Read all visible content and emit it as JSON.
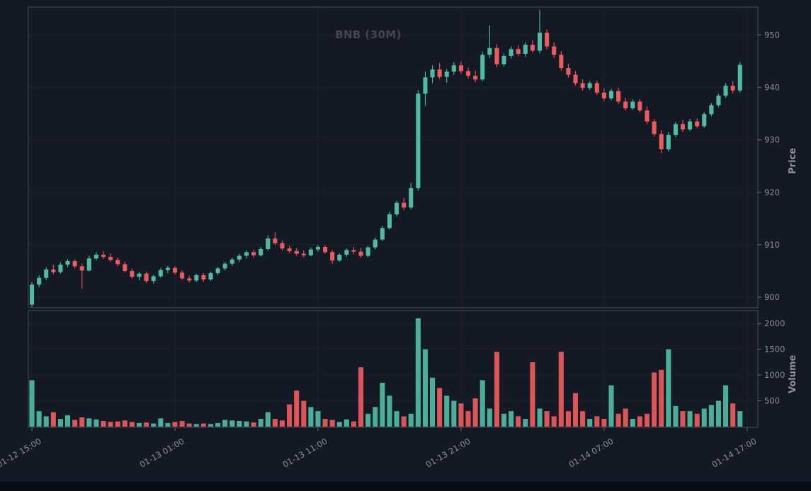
{
  "window": {
    "background_color": "#141a25",
    "bottom_edge_color": "#0a0d14"
  },
  "chart": {
    "title": "BNB (30M)",
    "price_axis_label": "Price",
    "volume_axis_label": "Volume"
  },
  "chart_data": {
    "type": "candlestick",
    "symbol": "BNB",
    "interval": "30M",
    "title": "BNB (30M)",
    "grid": true,
    "legend_position": "none",
    "up_color": "#4ebca4",
    "down_color": "#ef5b5b",
    "grid_color": "#1d2230",
    "spine_color": "#454b57",
    "tick_label_color": "#8b909b",
    "axis": {
      "price_ticks": [
        900,
        910,
        920,
        930,
        940,
        950
      ],
      "price_ylim": [
        898.0,
        955.3
      ],
      "volume_ticks": [
        500,
        1000,
        1500,
        2000
      ],
      "volume_ylim": [
        0,
        2250
      ],
      "x_tick_labels": [
        "01-12 15:00",
        "01-13 01:00",
        "01-13 11:00",
        "01-13 21:00",
        "01-14 07:00",
        "01-14 17:00"
      ],
      "x_tick_indices": [
        0,
        20,
        40,
        60,
        80,
        100
      ]
    },
    "columns": [
      "time",
      "open",
      "high",
      "low",
      "close",
      "volume"
    ],
    "candles": [
      [
        "01-12 15:00",
        898.6,
        902.9,
        898.1,
        902.4,
        900
      ],
      [
        "01-12 15:30",
        902.4,
        904.2,
        901.9,
        903.7,
        300
      ],
      [
        "01-12 16:00",
        903.7,
        905.7,
        903.3,
        905.3,
        200
      ],
      [
        "01-12 16:30",
        905.3,
        906.2,
        904.4,
        904.8,
        280
      ],
      [
        "01-12 17:00",
        904.8,
        906.6,
        904.5,
        906.2,
        150
      ],
      [
        "01-12 17:30",
        906.2,
        907.3,
        905.7,
        906.9,
        220
      ],
      [
        "01-12 18:00",
        906.9,
        907.2,
        905.5,
        905.9,
        130
      ],
      [
        "01-12 18:30",
        905.9,
        906.4,
        901.6,
        905.1,
        180
      ],
      [
        "01-12 19:00",
        905.1,
        907.9,
        904.9,
        907.4,
        160
      ],
      [
        "01-12 19:30",
        907.4,
        908.6,
        907.0,
        908.1,
        140
      ],
      [
        "01-12 20:00",
        908.1,
        908.8,
        907.3,
        907.7,
        110
      ],
      [
        "01-12 20:30",
        907.7,
        908.3,
        906.8,
        907.1,
        90
      ],
      [
        "01-12 21:00",
        907.1,
        907.6,
        905.9,
        906.3,
        100
      ],
      [
        "01-12 21:30",
        906.3,
        906.8,
        904.7,
        905.0,
        120
      ],
      [
        "01-12 22:00",
        905.0,
        905.5,
        903.6,
        903.9,
        90
      ],
      [
        "01-12 22:30",
        903.9,
        904.8,
        903.2,
        904.5,
        70
      ],
      [
        "01-12 23:00",
        904.5,
        904.9,
        902.7,
        903.1,
        80
      ],
      [
        "01-12 23:30",
        903.1,
        904.3,
        902.6,
        904.0,
        60
      ],
      [
        "01-13 00:00",
        904.0,
        905.6,
        903.7,
        905.2,
        160
      ],
      [
        "01-13 00:30",
        905.2,
        906.0,
        904.6,
        905.6,
        70
      ],
      [
        "01-13 01:00",
        905.6,
        905.9,
        904.3,
        904.7,
        90
      ],
      [
        "01-13 01:30",
        904.7,
        905.1,
        903.3,
        903.6,
        110
      ],
      [
        "01-13 02:00",
        903.6,
        904.1,
        902.8,
        903.2,
        60
      ],
      [
        "01-13 02:30",
        903.2,
        904.5,
        902.9,
        904.2,
        50
      ],
      [
        "01-13 03:00",
        904.2,
        904.6,
        903.0,
        903.4,
        60
      ],
      [
        "01-13 03:30",
        903.4,
        904.9,
        903.1,
        904.6,
        50
      ],
      [
        "01-13 04:00",
        904.6,
        905.8,
        904.2,
        905.5,
        70
      ],
      [
        "01-13 04:30",
        905.5,
        906.7,
        905.1,
        906.4,
        130
      ],
      [
        "01-13 05:00",
        906.4,
        907.6,
        906.0,
        907.2,
        120
      ],
      [
        "01-13 05:30",
        907.2,
        908.3,
        906.7,
        907.9,
        110
      ],
      [
        "01-13 06:00",
        907.9,
        909.0,
        907.4,
        908.6,
        100
      ],
      [
        "01-13 06:30",
        908.6,
        909.1,
        907.6,
        908.0,
        80
      ],
      [
        "01-13 07:00",
        908.0,
        909.6,
        907.7,
        909.2,
        150
      ],
      [
        "01-13 07:30",
        909.2,
        911.8,
        908.9,
        911.2,
        280
      ],
      [
        "01-13 08:00",
        911.2,
        912.4,
        909.9,
        910.3,
        150
      ],
      [
        "01-13 08:30",
        910.3,
        910.8,
        908.9,
        909.3,
        120
      ],
      [
        "01-13 09:00",
        909.3,
        909.8,
        908.4,
        908.8,
        430
      ],
      [
        "01-13 09:30",
        908.8,
        909.4,
        907.9,
        908.3,
        700
      ],
      [
        "01-13 10:00",
        908.3,
        908.9,
        907.6,
        908.0,
        500
      ],
      [
        "01-13 10:30",
        908.0,
        909.5,
        907.8,
        909.1,
        380
      ],
      [
        "01-13 11:00",
        909.1,
        910.0,
        908.7,
        909.6,
        300
      ],
      [
        "01-13 11:30",
        909.6,
        909.9,
        908.3,
        908.6,
        150
      ],
      [
        "01-13 12:00",
        908.6,
        909.0,
        906.4,
        907.0,
        130
      ],
      [
        "01-13 12:30",
        907.0,
        908.4,
        906.8,
        908.1,
        90
      ],
      [
        "01-13 13:00",
        908.1,
        909.3,
        907.7,
        909.0,
        140
      ],
      [
        "01-13 13:30",
        909.0,
        909.6,
        908.2,
        908.7,
        100
      ],
      [
        "01-13 14:00",
        908.7,
        909.4,
        907.5,
        907.9,
        1150
      ],
      [
        "01-13 14:30",
        907.9,
        909.8,
        907.6,
        909.5,
        250
      ],
      [
        "01-13 15:00",
        909.5,
        911.4,
        909.1,
        911.0,
        380
      ],
      [
        "01-13 15:30",
        911.0,
        913.6,
        910.7,
        913.2,
        850
      ],
      [
        "01-13 16:00",
        913.2,
        916.3,
        912.9,
        915.8,
        600
      ],
      [
        "01-13 16:30",
        915.8,
        918.4,
        915.4,
        918.0,
        300
      ],
      [
        "01-13 17:00",
        918.0,
        918.9,
        916.6,
        917.1,
        200
      ],
      [
        "01-13 17:30",
        917.1,
        921.8,
        916.8,
        920.8,
        250
      ],
      [
        "01-13 18:00",
        920.8,
        939.5,
        920.3,
        938.8,
        2100
      ],
      [
        "01-13 18:30",
        938.8,
        943.0,
        936.5,
        941.9,
        1500
      ],
      [
        "01-13 19:00",
        941.9,
        944.2,
        940.8,
        943.4,
        950
      ],
      [
        "01-13 19:30",
        943.4,
        944.6,
        941.5,
        942.0,
        750
      ],
      [
        "01-13 20:00",
        942.0,
        943.5,
        940.9,
        943.0,
        600
      ],
      [
        "01-13 20:30",
        943.0,
        944.8,
        942.4,
        944.2,
        500
      ],
      [
        "01-13 21:00",
        944.2,
        944.9,
        942.6,
        943.1,
        450
      ],
      [
        "01-13 21:30",
        943.1,
        943.8,
        941.7,
        942.2,
        300
      ],
      [
        "01-13 22:00",
        942.2,
        943.2,
        941.0,
        941.5,
        550
      ],
      [
        "01-13 22:30",
        941.5,
        946.8,
        941.2,
        946.2,
        900
      ],
      [
        "01-13 23:00",
        946.2,
        951.8,
        945.6,
        947.5,
        350
      ],
      [
        "01-13 23:30",
        947.5,
        948.2,
        943.8,
        944.4,
        1450
      ],
      [
        "01-14 00:00",
        944.4,
        946.5,
        944.0,
        946.0,
        250
      ],
      [
        "01-14 00:30",
        946.0,
        947.8,
        945.5,
        947.3,
        300
      ],
      [
        "01-14 01:00",
        947.3,
        948.0,
        945.9,
        946.4,
        200
      ],
      [
        "01-14 01:30",
        946.4,
        948.6,
        945.8,
        948.1,
        150
      ],
      [
        "01-14 02:00",
        948.1,
        949.0,
        946.6,
        947.0,
        1250
      ],
      [
        "01-14 02:30",
        947.0,
        954.8,
        946.5,
        950.4,
        350
      ],
      [
        "01-14 03:00",
        950.4,
        951.0,
        947.3,
        947.8,
        300
      ],
      [
        "01-14 03:30",
        947.8,
        948.6,
        945.6,
        946.2,
        200
      ],
      [
        "01-14 04:00",
        946.2,
        946.9,
        943.2,
        943.7,
        1450
      ],
      [
        "01-14 04:30",
        943.7,
        944.5,
        941.9,
        942.4,
        300
      ],
      [
        "01-14 05:00",
        942.4,
        943.1,
        940.3,
        940.8,
        650
      ],
      [
        "01-14 05:30",
        940.8,
        941.5,
        939.4,
        939.9,
        300
      ],
      [
        "01-14 06:00",
        939.9,
        941.2,
        939.5,
        940.8,
        150
      ],
      [
        "01-14 06:30",
        940.8,
        941.3,
        938.6,
        939.0,
        200
      ],
      [
        "01-14 07:00",
        939.0,
        939.8,
        937.4,
        937.9,
        150
      ],
      [
        "01-14 07:30",
        937.9,
        939.7,
        937.5,
        939.3,
        800
      ],
      [
        "01-14 08:00",
        939.3,
        939.9,
        936.8,
        937.3,
        250
      ],
      [
        "01-14 08:30",
        937.3,
        938.0,
        935.6,
        936.0,
        350
      ],
      [
        "01-14 09:00",
        936.0,
        937.7,
        935.7,
        937.3,
        150
      ],
      [
        "01-14 09:30",
        937.3,
        937.8,
        935.2,
        935.6,
        200
      ],
      [
        "01-14 10:00",
        935.6,
        936.4,
        933.0,
        933.5,
        250
      ],
      [
        "01-14 10:30",
        933.5,
        934.0,
        930.6,
        931.1,
        1050
      ],
      [
        "01-14 11:00",
        931.1,
        931.8,
        927.5,
        928.2,
        1100
      ],
      [
        "01-14 11:30",
        928.2,
        931.5,
        927.8,
        930.9,
        1500
      ],
      [
        "01-14 12:00",
        930.9,
        933.4,
        930.5,
        933.0,
        400
      ],
      [
        "01-14 12:30",
        933.0,
        933.8,
        931.5,
        932.0,
        300
      ],
      [
        "01-14 13:00",
        932.0,
        934.0,
        931.7,
        933.5,
        300
      ],
      [
        "01-14 13:30",
        933.5,
        934.1,
        932.2,
        932.6,
        250
      ],
      [
        "01-14 14:00",
        932.6,
        935.3,
        932.3,
        934.9,
        350
      ],
      [
        "01-14 14:30",
        934.9,
        937.0,
        934.5,
        936.6,
        420
      ],
      [
        "01-14 15:00",
        936.6,
        938.8,
        936.2,
        938.4,
        500
      ],
      [
        "01-14 15:30",
        938.4,
        940.8,
        938.0,
        940.3,
        800
      ],
      [
        "01-14 16:00",
        940.3,
        941.2,
        938.9,
        939.4,
        450
      ],
      [
        "01-14 16:30",
        939.4,
        944.8,
        939.0,
        944.3,
        300
      ]
    ]
  }
}
